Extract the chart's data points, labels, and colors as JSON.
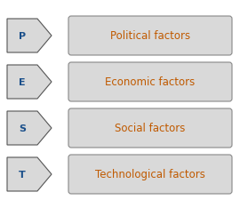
{
  "rows": [
    {
      "letter": "P",
      "label": "Political factors"
    },
    {
      "letter": "E",
      "label": "Economic factors"
    },
    {
      "letter": "S",
      "label": "Social factors"
    },
    {
      "letter": "T",
      "label": "Technological factors"
    }
  ],
  "bg_color": "#ffffff",
  "arrow_fill": "#d9d9d9",
  "arrow_edge": "#555555",
  "box_fill": "#d9d9d9",
  "box_edge": "#888888",
  "letter_color": "#1a4f8a",
  "label_color": "#c05a00",
  "letter_fontsize": 8,
  "label_fontsize": 8.5,
  "fig_width": 2.7,
  "fig_height": 2.26,
  "dpi": 100
}
